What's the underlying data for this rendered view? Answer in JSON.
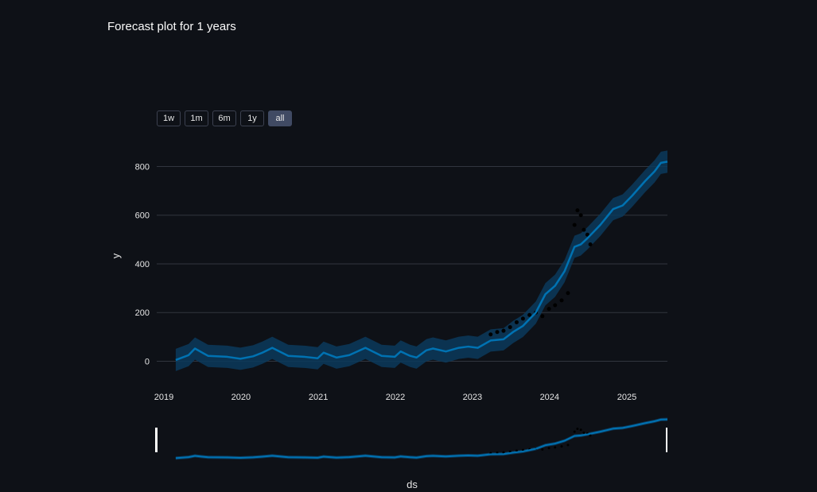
{
  "page": {
    "title": "Forecast plot for 1 years"
  },
  "range_selector": {
    "buttons": [
      "1w",
      "1m",
      "6m",
      "1y",
      "all"
    ],
    "active": "all"
  },
  "colors": {
    "background": "#0e1117",
    "forecast_line": "#0072B2",
    "uncertainty_band": "#0a3a5c",
    "actual_points": "#000000",
    "gridline": "#31353f",
    "range_slider_bg": "#0e1117"
  },
  "chart_data": {
    "type": "line",
    "title": "Forecast plot for 1 years",
    "xlabel": "ds",
    "ylabel": "y",
    "x_ticks": [
      "2019",
      "2020",
      "2021",
      "2022",
      "2023",
      "2024",
      "2025"
    ],
    "y_ticks": [
      0,
      200,
      400,
      600,
      800
    ],
    "xlim": [
      "2019-01-01",
      "2025-08-15"
    ],
    "ylim": [
      -90,
      880
    ],
    "grid": true,
    "range_slider": true,
    "series": [
      {
        "kind": "forecast",
        "x": [
          "2019-04-01",
          "2019-06-01",
          "2019-07-01",
          "2019-09-01",
          "2019-12-01",
          "2020-02-01",
          "2020-04-01",
          "2020-05-15",
          "2020-07-01",
          "2020-09-15",
          "2020-12-01",
          "2021-02-01",
          "2021-03-01",
          "2021-05-01",
          "2021-07-01",
          "2021-09-15",
          "2021-12-01",
          "2022-02-01",
          "2022-03-01",
          "2022-04-15",
          "2022-05-15",
          "2022-07-01",
          "2022-08-01",
          "2022-10-01",
          "2022-12-01",
          "2023-01-15",
          "2023-03-01",
          "2023-05-01",
          "2023-07-01",
          "2023-08-15",
          "2023-10-01",
          "2023-12-01",
          "2024-01-15",
          "2024-03-01",
          "2024-04-15",
          "2024-06-01",
          "2024-07-01",
          "2024-08-01",
          "2024-10-01",
          "2024-12-01",
          "2025-01-15",
          "2025-03-01",
          "2025-05-01",
          "2025-06-15",
          "2025-07-15",
          "2025-08-15"
        ],
        "y": [
          5,
          25,
          52,
          22,
          18,
          10,
          20,
          35,
          55,
          22,
          18,
          12,
          35,
          15,
          25,
          55,
          22,
          18,
          40,
          22,
          15,
          45,
          52,
          40,
          55,
          60,
          55,
          85,
          90,
          120,
          145,
          200,
          275,
          310,
          370,
          470,
          480,
          505,
          560,
          625,
          640,
          680,
          740,
          780,
          815,
          820
        ]
      },
      {
        "kind": "actual",
        "x": [
          "2023-05-01",
          "2023-06-01",
          "2023-07-01",
          "2023-08-01",
          "2023-09-01",
          "2023-10-01",
          "2023-11-01",
          "2023-12-01",
          "2024-01-01",
          "2024-02-01",
          "2024-03-01",
          "2024-04-01",
          "2024-05-01",
          "2024-06-01",
          "2024-06-15",
          "2024-07-01",
          "2024-07-15",
          "2024-08-01",
          "2024-08-15"
        ],
        "y": [
          110,
          120,
          125,
          140,
          160,
          175,
          190,
          200,
          185,
          215,
          230,
          250,
          280,
          560,
          620,
          600,
          540,
          520,
          480
        ]
      }
    ]
  },
  "x_axis": {
    "title": "ds"
  },
  "y_axis": {
    "title": "y"
  }
}
